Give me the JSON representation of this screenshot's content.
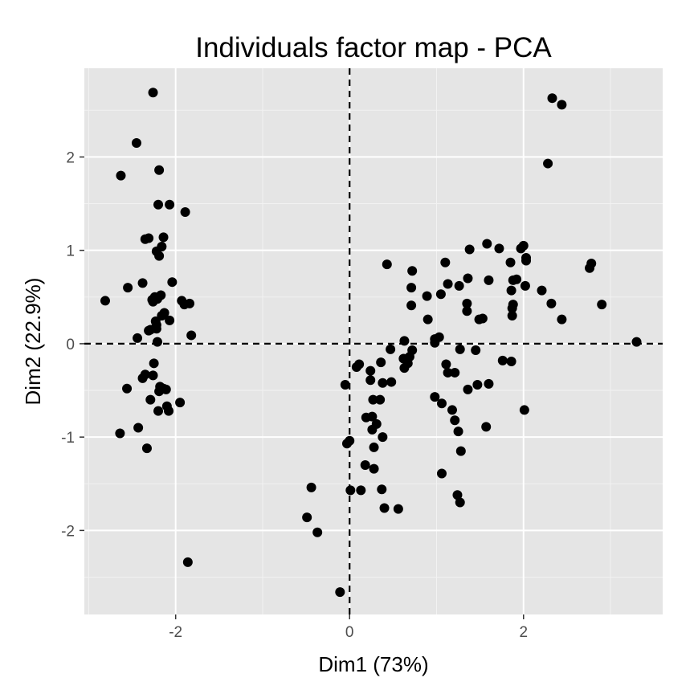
{
  "chart_data": {
    "type": "scatter",
    "title": "Individuals factor map - PCA",
    "xlabel": "Dim1 (73%)",
    "ylabel": "Dim2 (22.9%)",
    "xlim": [
      -3.05,
      3.6
    ],
    "ylim": [
      -2.9,
      2.95
    ],
    "xticks": [
      -2,
      0,
      2
    ],
    "yticks": [
      -2,
      -1,
      0,
      1,
      2
    ],
    "xtick_labels": [
      "-2",
      "0",
      "2"
    ],
    "ytick_labels": [
      "-2",
      "-1",
      "0",
      "1",
      "2"
    ],
    "reference_lines": {
      "x": 0,
      "y": 0,
      "style": "dashed"
    },
    "grid": true,
    "colors": {
      "panel": "#e5e5e5",
      "grid_major": "#ffffff",
      "grid_minor": "#f2f2f2",
      "point": "#000000",
      "ref_line": "#000000"
    },
    "points": [
      [
        -2.26,
        2.69
      ],
      [
        -2.45,
        2.15
      ],
      [
        -2.63,
        1.8
      ],
      [
        -2.19,
        1.86
      ],
      [
        -2.2,
        1.49
      ],
      [
        -2.07,
        1.49
      ],
      [
        -1.89,
        1.41
      ],
      [
        -2.35,
        1.12
      ],
      [
        -2.31,
        1.13
      ],
      [
        -2.14,
        1.14
      ],
      [
        -2.16,
        1.04
      ],
      [
        -2.22,
        0.99
      ],
      [
        -2.19,
        0.94
      ],
      [
        -2.04,
        0.66
      ],
      [
        -2.38,
        0.65
      ],
      [
        -2.55,
        0.6
      ],
      [
        -2.17,
        0.52
      ],
      [
        -2.24,
        0.5
      ],
      [
        -2.21,
        0.48
      ],
      [
        -2.27,
        0.47
      ],
      [
        -2.26,
        0.45
      ],
      [
        -2.81,
        0.46
      ],
      [
        -1.93,
        0.46
      ],
      [
        -1.9,
        0.42
      ],
      [
        -1.84,
        0.43
      ],
      [
        -2.13,
        0.33
      ],
      [
        -2.16,
        0.3
      ],
      [
        -2.07,
        0.25
      ],
      [
        -2.23,
        0.24
      ],
      [
        -2.22,
        0.2
      ],
      [
        -2.29,
        0.15
      ],
      [
        -2.31,
        0.14
      ],
      [
        -2.22,
        0.16
      ],
      [
        -1.82,
        0.09
      ],
      [
        -2.44,
        0.06
      ],
      [
        -2.21,
        0.02
      ],
      [
        -2.25,
        -0.21
      ],
      [
        -2.35,
        -0.33
      ],
      [
        -2.38,
        -0.37
      ],
      [
        -2.26,
        -0.34
      ],
      [
        -2.18,
        -0.46
      ],
      [
        -2.14,
        -0.48
      ],
      [
        -2.19,
        -0.51
      ],
      [
        -2.11,
        -0.49
      ],
      [
        -2.56,
        -0.48
      ],
      [
        -2.29,
        -0.6
      ],
      [
        -2.2,
        -0.72
      ],
      [
        -2.1,
        -0.67
      ],
      [
        -2.08,
        -0.72
      ],
      [
        -1.95,
        -0.63
      ],
      [
        -2.43,
        -0.9
      ],
      [
        -2.64,
        -0.96
      ],
      [
        -2.33,
        -1.12
      ],
      [
        -1.86,
        -2.34
      ],
      [
        2.33,
        2.63
      ],
      [
        2.44,
        2.56
      ],
      [
        2.28,
        1.93
      ],
      [
        3.3,
        0.02
      ],
      [
        2.9,
        0.42
      ],
      [
        2.78,
        0.86
      ],
      [
        2.76,
        0.81
      ],
      [
        2.32,
        0.43
      ],
      [
        2.44,
        0.26
      ],
      [
        2.21,
        0.57
      ],
      [
        2.02,
        0.62
      ],
      [
        2.03,
        0.89
      ],
      [
        2.03,
        0.92
      ],
      [
        2.0,
        1.05
      ],
      [
        1.97,
        1.02
      ],
      [
        1.92,
        0.69
      ],
      [
        1.88,
        0.68
      ],
      [
        1.86,
        0.57
      ],
      [
        1.88,
        0.42
      ],
      [
        1.87,
        0.38
      ],
      [
        1.87,
        0.3
      ],
      [
        1.85,
        0.87
      ],
      [
        1.72,
        1.02
      ],
      [
        1.58,
        1.07
      ],
      [
        1.6,
        0.68
      ],
      [
        1.38,
        1.01
      ],
      [
        1.36,
        0.7
      ],
      [
        1.35,
        0.43
      ],
      [
        1.35,
        0.35
      ],
      [
        1.49,
        0.26
      ],
      [
        1.53,
        0.27
      ],
      [
        1.26,
        0.62
      ],
      [
        1.1,
        0.87
      ],
      [
        1.13,
        0.64
      ],
      [
        1.05,
        0.53
      ],
      [
        0.89,
        0.51
      ],
      [
        0.72,
        0.78
      ],
      [
        0.71,
        0.6
      ],
      [
        0.71,
        0.41
      ],
      [
        0.9,
        0.26
      ],
      [
        0.43,
        0.85
      ],
      [
        1.03,
        0.07
      ],
      [
        0.98,
        0.05
      ],
      [
        0.98,
        0.01
      ],
      [
        0.63,
        0.03
      ],
      [
        0.72,
        -0.07
      ],
      [
        0.69,
        -0.14
      ],
      [
        0.62,
        -0.16
      ],
      [
        0.67,
        -0.21
      ],
      [
        0.63,
        -0.26
      ],
      [
        0.47,
        -0.06
      ],
      [
        0.36,
        -0.2
      ],
      [
        0.48,
        -0.41
      ],
      [
        0.38,
        -0.42
      ],
      [
        0.24,
        -0.29
      ],
      [
        0.24,
        -0.39
      ],
      [
        0.11,
        -0.22
      ],
      [
        0.08,
        -0.25
      ],
      [
        1.27,
        -0.06
      ],
      [
        1.45,
        -0.07
      ],
      [
        1.76,
        -0.18
      ],
      [
        1.86,
        -0.19
      ],
      [
        1.11,
        -0.22
      ],
      [
        1.13,
        -0.31
      ],
      [
        1.21,
        -0.31
      ],
      [
        1.47,
        -0.44
      ],
      [
        1.6,
        -0.43
      ],
      [
        1.36,
        -0.49
      ],
      [
        0.98,
        -0.57
      ],
      [
        1.06,
        -0.64
      ],
      [
        1.18,
        -0.71
      ],
      [
        1.21,
        -0.82
      ],
      [
        2.01,
        -0.71
      ],
      [
        1.25,
        -0.94
      ],
      [
        1.57,
        -0.89
      ],
      [
        1.28,
        -1.15
      ],
      [
        1.06,
        -1.39
      ],
      [
        1.24,
        -1.62
      ],
      [
        1.27,
        -1.7
      ],
      [
        0.27,
        -0.6
      ],
      [
        0.35,
        -0.6
      ],
      [
        0.26,
        -0.78
      ],
      [
        0.19,
        -0.79
      ],
      [
        0.31,
        -0.86
      ],
      [
        0.26,
        -0.92
      ],
      [
        0.38,
        -1.0
      ],
      [
        0.28,
        -1.11
      ],
      [
        0.18,
        -1.3
      ],
      [
        0.28,
        -1.34
      ],
      [
        -0.05,
        -0.44
      ],
      [
        -0.03,
        -1.07
      ],
      [
        0.0,
        -1.04
      ],
      [
        0.13,
        -1.57
      ],
      [
        0.37,
        -1.56
      ],
      [
        0.01,
        -1.57
      ],
      [
        0.4,
        -1.76
      ],
      [
        0.56,
        -1.77
      ],
      [
        -0.44,
        -1.54
      ],
      [
        -0.49,
        -1.86
      ],
      [
        -0.37,
        -2.02
      ],
      [
        -0.11,
        -2.66
      ]
    ]
  }
}
